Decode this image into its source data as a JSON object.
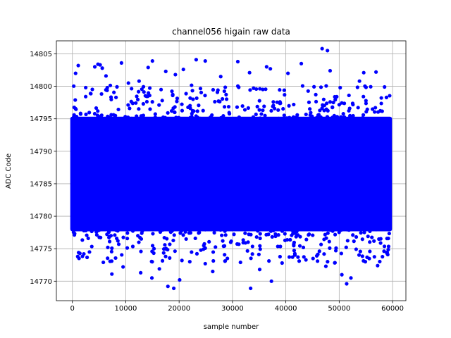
{
  "chart_data": {
    "type": "scatter",
    "title": "channel056 higain raw data",
    "xlabel": "sample number",
    "ylabel": "ADC Code",
    "xlim": [
      -3000,
      62500
    ],
    "ylim": [
      14767,
      14807
    ],
    "xticks": [
      0,
      10000,
      20000,
      30000,
      40000,
      50000,
      60000
    ],
    "xtick_labels": [
      "0",
      "10000",
      "20000",
      "30000",
      "40000",
      "50000",
      "60000"
    ],
    "yticks": [
      14770,
      14775,
      14780,
      14785,
      14790,
      14795,
      14800,
      14805
    ],
    "ytick_labels": [
      "14770",
      "14775",
      "14780",
      "14785",
      "14790",
      "14795",
      "14800",
      "14805"
    ],
    "grid": true,
    "series": [
      {
        "color": "#0000ff",
        "marker": "circle",
        "band": {
          "x_start": 0,
          "x_end": 59500,
          "y_low": 14778,
          "y_high": 14795
        },
        "outliers": [
          [
            600,
            14802.0
          ],
          [
            1100,
            14803.2
          ],
          [
            2500,
            14799.8
          ],
          [
            4200,
            14803.0
          ],
          [
            4800,
            14803.4
          ],
          [
            5200,
            14803.3
          ],
          [
            5600,
            14802.8
          ],
          [
            6300,
            14801.6
          ],
          [
            9200,
            14803.6
          ],
          [
            10500,
            14800.5
          ],
          [
            12500,
            14800.8
          ],
          [
            14200,
            14802.9
          ],
          [
            15000,
            14803.9
          ],
          [
            17500,
            14802.3
          ],
          [
            19300,
            14801.8
          ],
          [
            20800,
            14802.6
          ],
          [
            23200,
            14804.1
          ],
          [
            24900,
            14803.9
          ],
          [
            27800,
            14801.5
          ],
          [
            31000,
            14803.8
          ],
          [
            33200,
            14802.1
          ],
          [
            36400,
            14803.0
          ],
          [
            37100,
            14802.7
          ],
          [
            40400,
            14802.0
          ],
          [
            42900,
            14803.5
          ],
          [
            46800,
            14805.8
          ],
          [
            47800,
            14805.5
          ],
          [
            48300,
            14802.4
          ],
          [
            53800,
            14800.8
          ],
          [
            54600,
            14802.1
          ],
          [
            56900,
            14802.2
          ],
          [
            58500,
            14799.9
          ],
          [
            1000,
            14773.8
          ],
          [
            3200,
            14774.5
          ],
          [
            5800,
            14772.9
          ],
          [
            7400,
            14771.1
          ],
          [
            9500,
            14772.2
          ],
          [
            12800,
            14771.3
          ],
          [
            14900,
            14770.5
          ],
          [
            16300,
            14771.9
          ],
          [
            17900,
            14769.2
          ],
          [
            19000,
            14768.9
          ],
          [
            20100,
            14770.2
          ],
          [
            22000,
            14773.0
          ],
          [
            24900,
            14772.7
          ],
          [
            26300,
            14771.5
          ],
          [
            28600,
            14773.1
          ],
          [
            31500,
            14772.9
          ],
          [
            33400,
            14768.9
          ],
          [
            35100,
            14771.8
          ],
          [
            37300,
            14770.0
          ],
          [
            39300,
            14772.8
          ],
          [
            42500,
            14773.1
          ],
          [
            45800,
            14773.9
          ],
          [
            47500,
            14772.3
          ],
          [
            50500,
            14771.0
          ],
          [
            51400,
            14769.6
          ],
          [
            52200,
            14770.5
          ],
          [
            54900,
            14773.0
          ],
          [
            57200,
            14772.4
          ],
          [
            59100,
            14774.1
          ]
        ]
      }
    ]
  }
}
